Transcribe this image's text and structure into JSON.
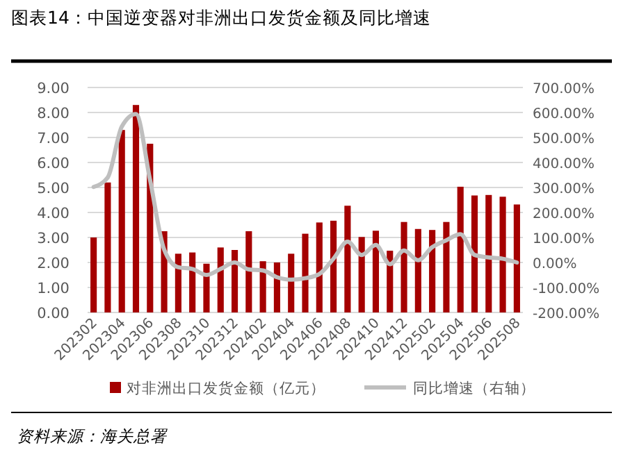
{
  "chart_data": {
    "type": "bar",
    "title": "图表14：中国逆变器对非洲出口发货金额及同比增速",
    "categories": [
      "202302",
      null,
      "202304",
      null,
      "202306",
      null,
      "202308",
      null,
      "202310",
      null,
      "202312",
      null,
      "202402",
      null,
      "202404",
      null,
      "202406",
      null,
      "202408",
      null,
      "202410",
      null,
      "202412",
      null,
      "202502",
      null,
      "202504",
      null,
      "202506",
      null,
      "202508"
    ],
    "series": [
      {
        "name": "对非洲出口发货金额（亿元）",
        "color": "#a50000",
        "values": [
          3.0,
          5.2,
          7.3,
          8.3,
          6.75,
          3.25,
          2.35,
          2.4,
          1.95,
          2.6,
          2.5,
          3.25,
          2.05,
          2.0,
          2.35,
          3.15,
          3.6,
          3.67,
          4.27,
          3.02,
          3.27,
          2.47,
          3.62,
          3.34,
          3.3,
          3.62,
          5.03,
          4.68,
          4.7,
          4.63,
          4.32
        ]
      },
      {
        "name": "同比增速（右轴）",
        "type": "line",
        "axis": "y2",
        "color": "#bfbfbf",
        "values": [
          302,
          340,
          544,
          594,
          330,
          52,
          -19,
          -26,
          -50,
          -26,
          0,
          -28,
          -32,
          -59,
          -69,
          -63,
          -46,
          15,
          83,
          30,
          70,
          -7,
          48,
          9,
          61,
          89,
          113,
          30,
          20,
          15,
          0
        ]
      }
    ],
    "ylim": [
      0,
      9
    ],
    "yticks": [
      {
        "value": 0,
        "label": "0.00"
      },
      {
        "value": 1,
        "label": "1.00"
      },
      {
        "value": 2,
        "label": "2.00"
      },
      {
        "value": 3,
        "label": "3.00"
      },
      {
        "value": 4,
        "label": "4.00"
      },
      {
        "value": 5,
        "label": "5.00"
      },
      {
        "value": 6,
        "label": "6.00"
      },
      {
        "value": 7,
        "label": "7.00"
      },
      {
        "value": 8,
        "label": "8.00"
      },
      {
        "value": 9,
        "label": "9.00"
      }
    ],
    "y2lim": [
      -200,
      700
    ],
    "y2ticks": [
      {
        "value": -200,
        "label": "-200.00%"
      },
      {
        "value": -100,
        "label": "-100.00%"
      },
      {
        "value": 0,
        "label": "0.00%"
      },
      {
        "value": 100,
        "label": "100.00%"
      },
      {
        "value": 200,
        "label": "200.00%"
      },
      {
        "value": 300,
        "label": "300.00%"
      },
      {
        "value": 400,
        "label": "400.00%"
      },
      {
        "value": 500,
        "label": "500.00%"
      },
      {
        "value": 600,
        "label": "600.00%"
      },
      {
        "value": 700,
        "label": "700.00%"
      }
    ],
    "grid": "y",
    "legend": "bottom",
    "marker": "none",
    "line_style": "solid",
    "annotations": [
      "资料来源：海关总署"
    ]
  }
}
